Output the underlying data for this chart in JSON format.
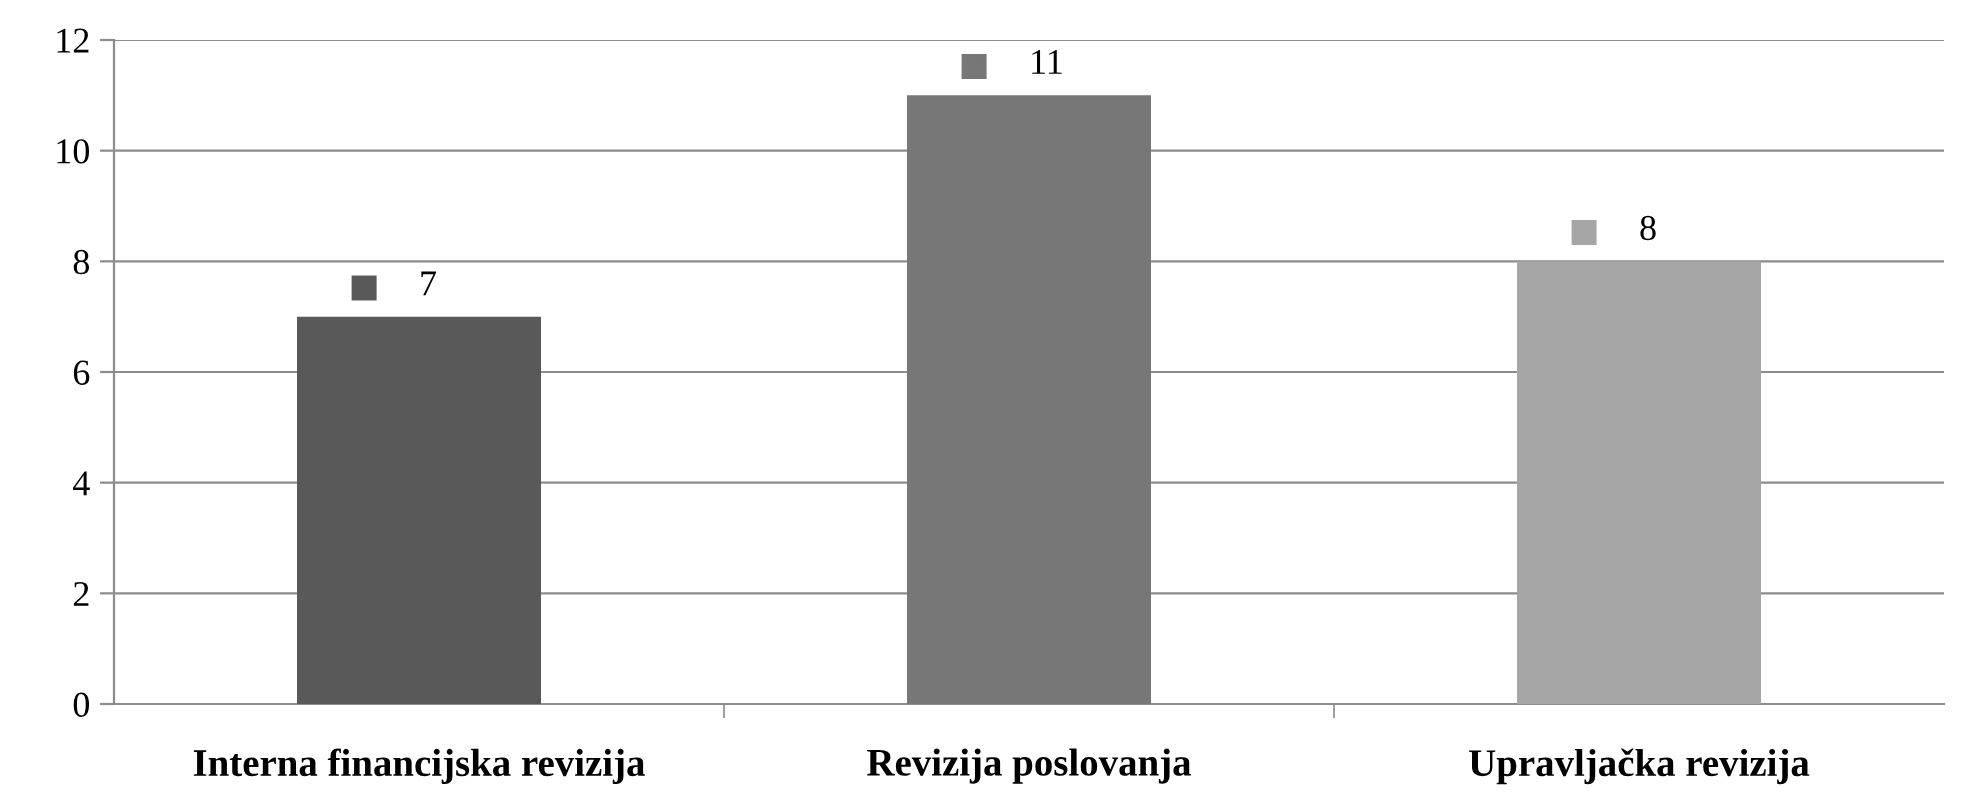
{
  "chart_data": {
    "type": "bar",
    "categories": [
      "Interna financijska revizija",
      "Revizija poslovanja",
      "Upravljačka revizija"
    ],
    "values": [
      7,
      11,
      8
    ],
    "colors": [
      "#595959",
      "#777777",
      "#a6a6a6"
    ],
    "ylim": [
      0,
      12
    ],
    "yticks": [
      0,
      2,
      4,
      6,
      8,
      10,
      12
    ],
    "grid": "y",
    "data_labels": true,
    "legend": false
  }
}
